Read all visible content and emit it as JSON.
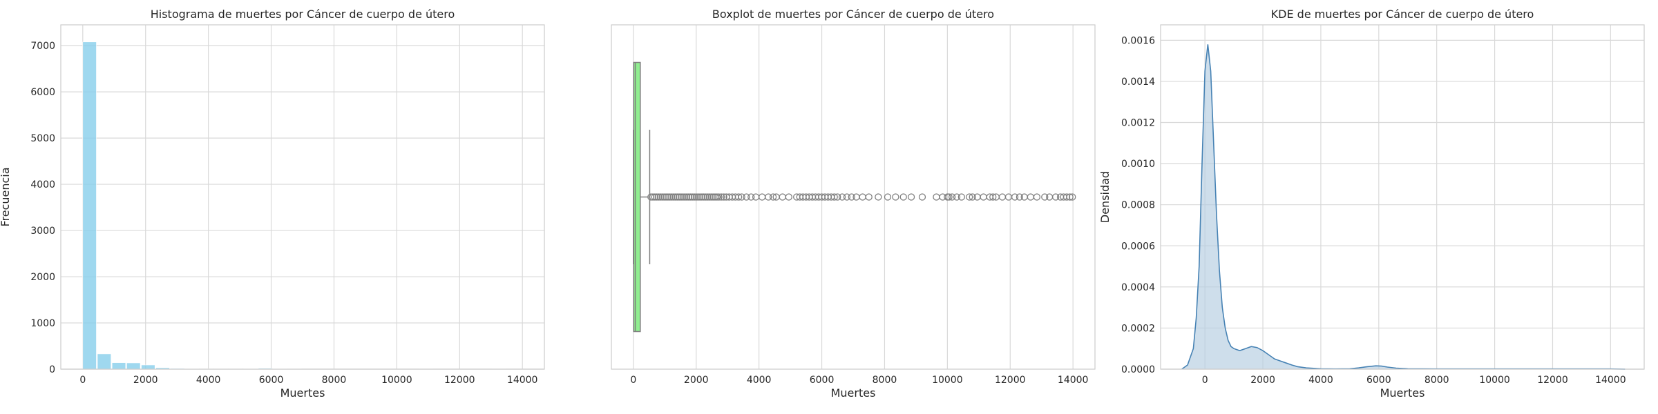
{
  "chart_data": [
    {
      "type": "bar",
      "title": "Histograma de muertes por Cáncer de cuerpo de útero",
      "xlabel": "Muertes",
      "ylabel": "Frecuencia",
      "xlim": [
        -700,
        14700
      ],
      "ylim": [
        0,
        7450
      ],
      "xticks": [
        0,
        2000,
        4000,
        6000,
        8000,
        10000,
        12000,
        14000
      ],
      "yticks": [
        0,
        1000,
        2000,
        3000,
        4000,
        5000,
        6000,
        7000
      ],
      "bin_width": 466,
      "bin_starts": [
        0,
        466,
        932,
        1398,
        1864,
        2330,
        2796,
        3262,
        3728,
        4194,
        4660,
        5126,
        5592,
        6058,
        6524,
        6990,
        7456,
        7922,
        8388,
        8854,
        9320,
        9786,
        10252,
        10718,
        11184,
        11650,
        12116,
        12582,
        13048,
        13514
      ],
      "values": [
        7080,
        330,
        140,
        135,
        90,
        30,
        15,
        10,
        8,
        6,
        5,
        12,
        18,
        10,
        6,
        3,
        2,
        2,
        1,
        2,
        2,
        3,
        3,
        4,
        3,
        3,
        3,
        3,
        4,
        3
      ],
      "bar_color": "#87ceeb",
      "grid": true
    },
    {
      "type": "boxplot",
      "title": "Boxplot de muertes por Cáncer de cuerpo de útero",
      "xlabel": "Muertes",
      "xlim": [
        -700,
        14700
      ],
      "xticks": [
        0,
        2000,
        4000,
        6000,
        8000,
        10000,
        12000,
        14000
      ],
      "q1": 10,
      "median": 60,
      "q3": 220,
      "whisker_low": 0,
      "whisker_high": 520,
      "outliers": [
        560,
        620,
        680,
        740,
        800,
        860,
        920,
        980,
        1040,
        1100,
        1160,
        1220,
        1280,
        1340,
        1400,
        1460,
        1520,
        1580,
        1640,
        1700,
        1760,
        1820,
        1880,
        1940,
        2000,
        2060,
        2120,
        2180,
        2240,
        2300,
        2360,
        2420,
        2480,
        2540,
        2600,
        2660,
        2720,
        2800,
        2880,
        2960,
        3050,
        3150,
        3250,
        3350,
        3450,
        3600,
        3750,
        3900,
        4100,
        4300,
        4450,
        4550,
        4750,
        4950,
        5200,
        5300,
        5400,
        5500,
        5600,
        5700,
        5800,
        5900,
        6000,
        6100,
        6200,
        6300,
        6400,
        6500,
        6650,
        6800,
        6950,
        7100,
        7300,
        7500,
        7800,
        8100,
        8350,
        8600,
        8850,
        9200,
        9650,
        9850,
        10000,
        10050,
        10150,
        10300,
        10450,
        10700,
        10800,
        10950,
        11150,
        11350,
        11450,
        11550,
        11750,
        11950,
        12150,
        12300,
        12450,
        12650,
        12850,
        13100,
        13250,
        13450,
        13600,
        13700,
        13800,
        13900,
        13980
      ],
      "box_color": "#90ee90",
      "grid": true
    },
    {
      "type": "area",
      "title": "KDE de muertes por Cáncer de cuerpo de útero",
      "xlabel": "Muertes",
      "ylabel": "Densidad",
      "xlim": [
        -1530,
        15160
      ],
      "ylim": [
        0,
        0.001675
      ],
      "xticks": [
        0,
        2000,
        4000,
        6000,
        8000,
        10000,
        12000,
        14000
      ],
      "yticks": [
        0,
        0.0002,
        0.0004,
        0.0006,
        0.0008,
        0.001,
        0.0012,
        0.0014,
        0.0016
      ],
      "x": [
        -800,
        -600,
        -400,
        -300,
        -200,
        -100,
        0,
        100,
        200,
        300,
        400,
        500,
        600,
        700,
        800,
        900,
        1000,
        1200,
        1400,
        1600,
        1800,
        2000,
        2200,
        2400,
        2600,
        2800,
        3000,
        3200,
        3500,
        4000,
        4500,
        5000,
        5300,
        5600,
        5900,
        6100,
        6300,
        6600,
        7000,
        8000,
        9000,
        10000,
        11000,
        12000,
        13000,
        14000,
        14500
      ],
      "y": [
        0,
        2e-05,
        0.0001,
        0.00025,
        0.0005,
        0.001,
        0.00145,
        0.00158,
        0.00145,
        0.0011,
        0.00075,
        0.00048,
        0.0003,
        0.0002,
        0.00014,
        0.00011,
        0.0001,
        9e-05,
        0.0001,
        0.00011,
        0.000105,
        9e-05,
        7e-05,
        5e-05,
        4e-05,
        3e-05,
        2e-05,
        1.2e-05,
        6e-06,
        2e-06,
        1e-06,
        2e-06,
        6e-06,
        1.2e-05,
        1.6e-05,
        1.5e-05,
        1e-05,
        5e-06,
        2e-06,
        1e-06,
        1e-06,
        1e-06,
        1e-06,
        1e-06,
        1e-06,
        1e-06,
        0
      ],
      "line_color": "#4682b4",
      "fill_color": "#b4cde0",
      "grid": true
    }
  ]
}
